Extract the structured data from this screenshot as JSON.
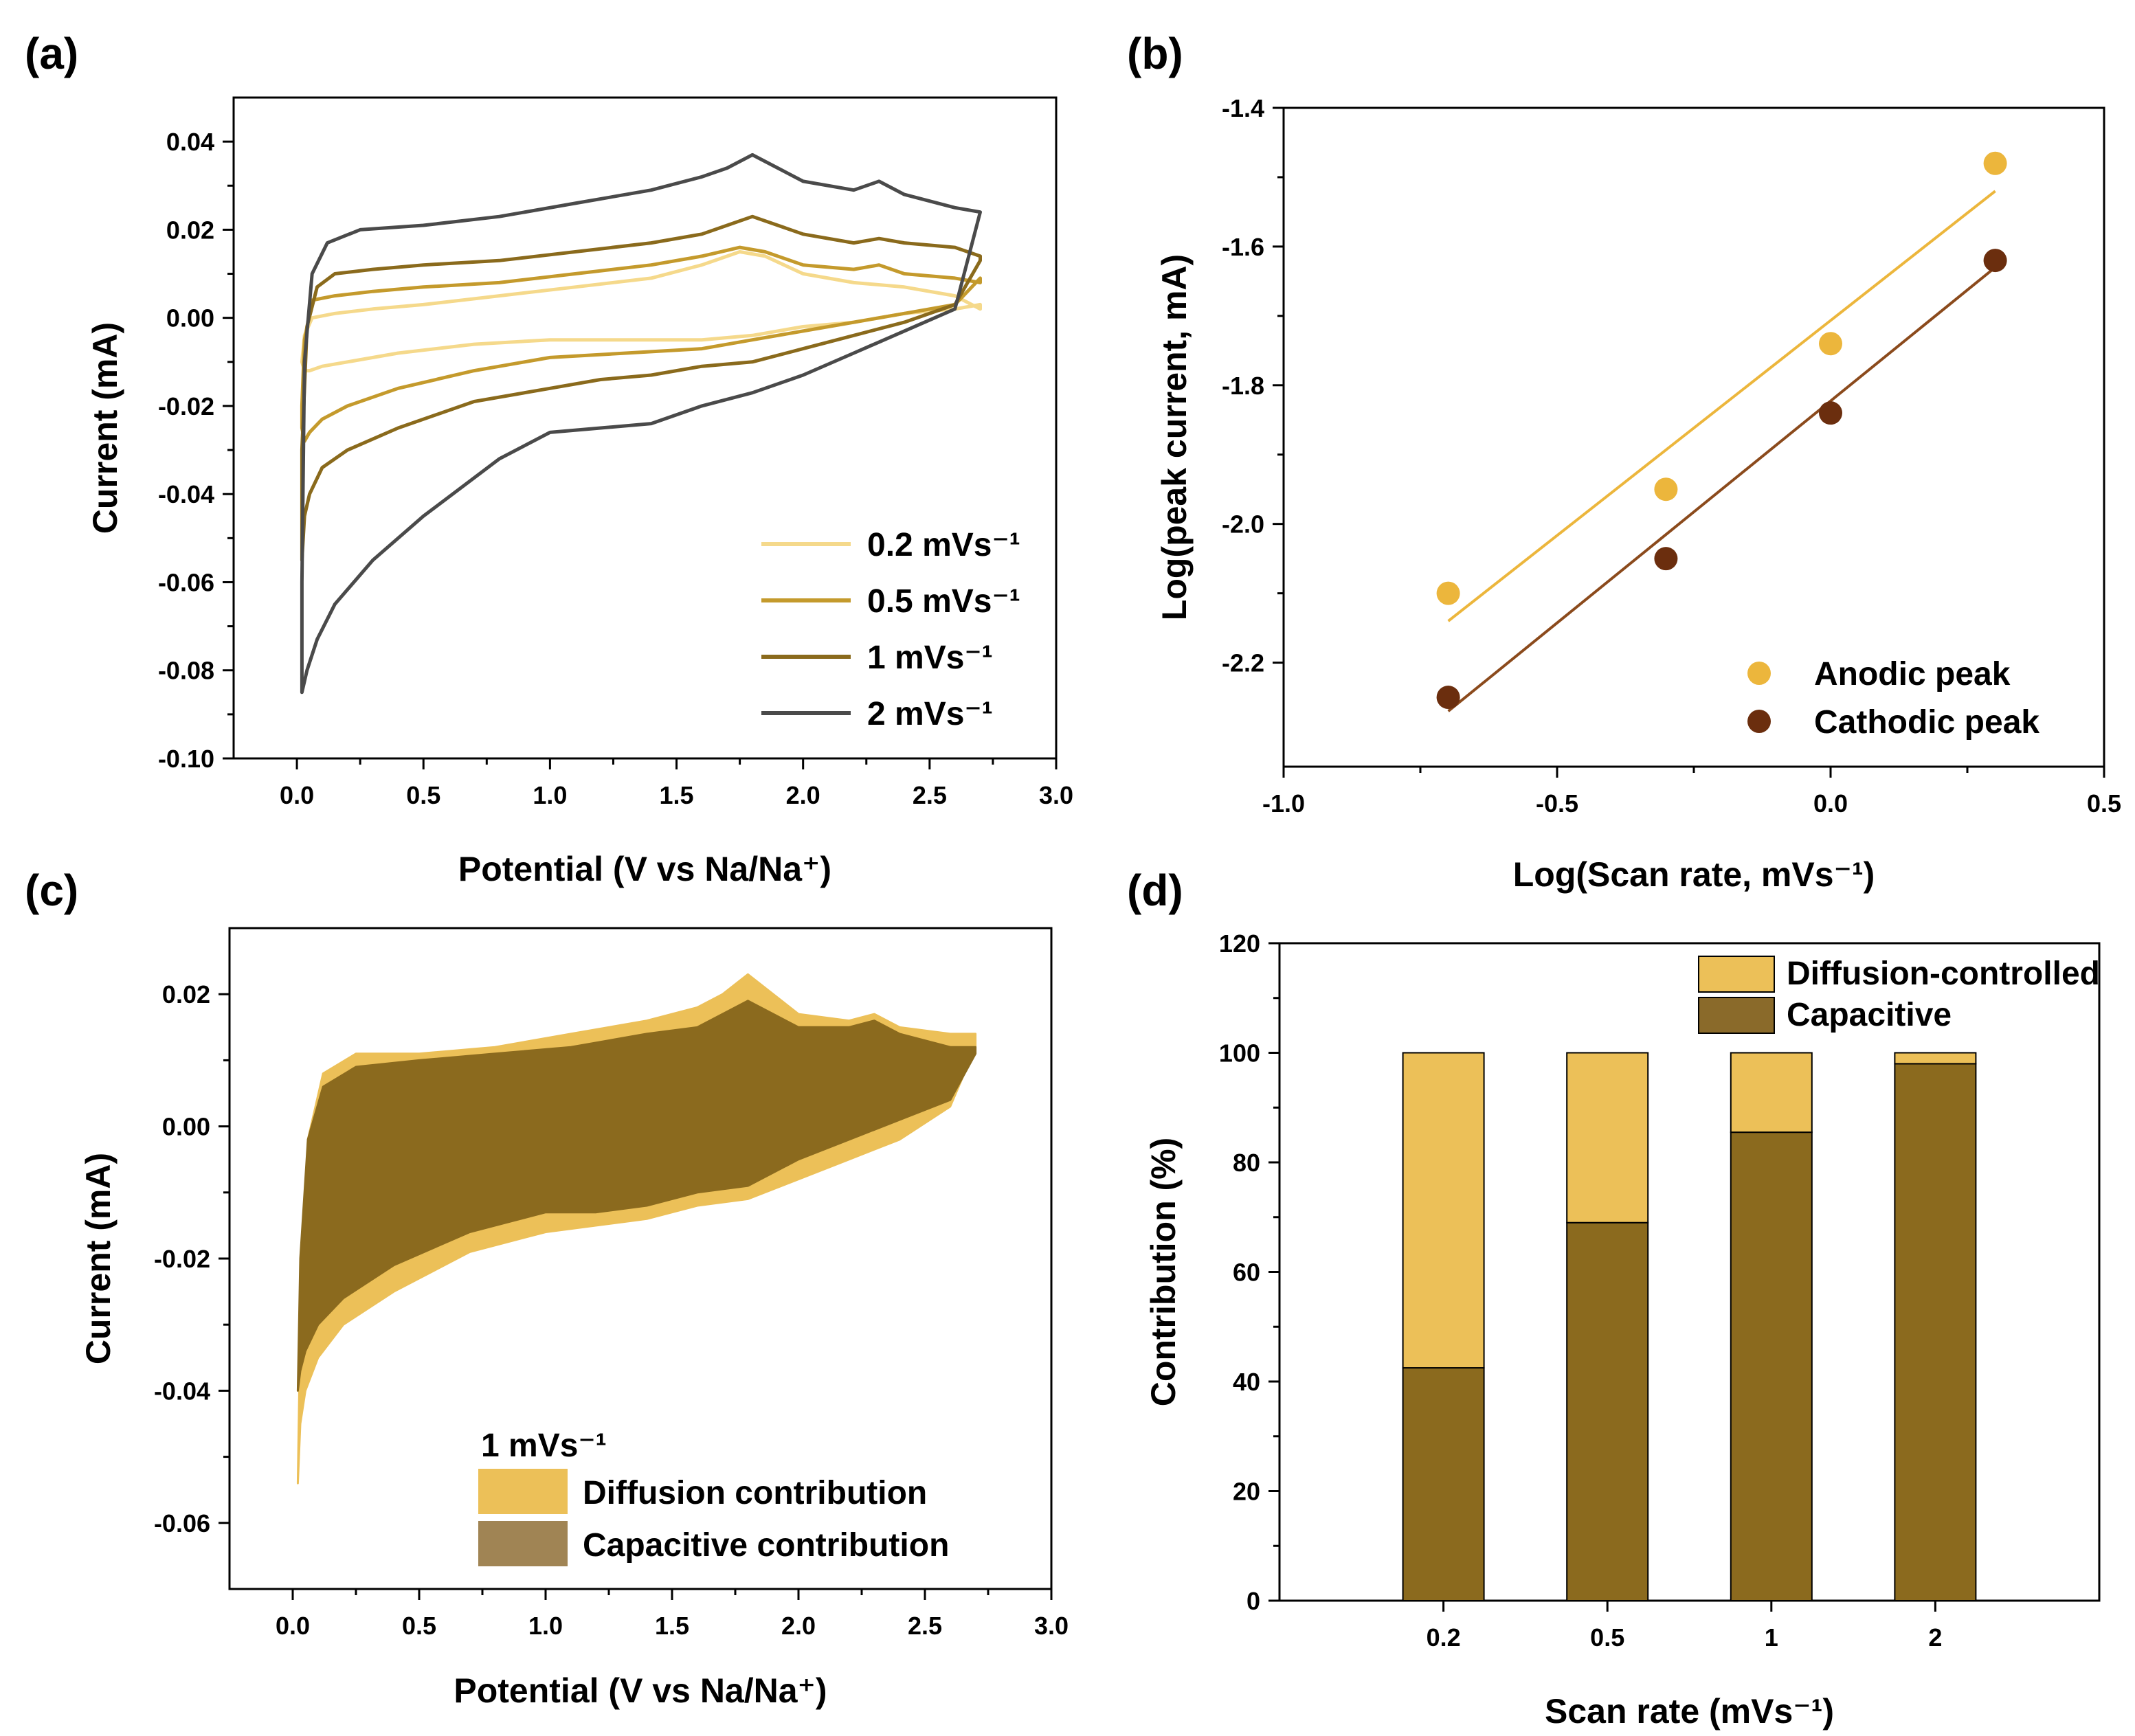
{
  "chart_data": [
    {
      "panel": "(a)",
      "type": "line",
      "title": "",
      "xlabel": "Potential (V vs Na/Na⁺)",
      "ylabel": "Current (mA)",
      "xlim": [
        -0.25,
        3.0
      ],
      "ylim": [
        -0.1,
        0.05
      ],
      "xticks": [
        0.0,
        0.5,
        1.0,
        1.5,
        2.0,
        2.5,
        3.0
      ],
      "xtick_labels": [
        "0.0",
        "0.5",
        "1.0",
        "1.5",
        "2.0",
        "2.5",
        "3.0"
      ],
      "yticks": [
        -0.1,
        -0.08,
        -0.06,
        -0.04,
        -0.02,
        0.0,
        0.02,
        0.04
      ],
      "ytick_labels": [
        "-0.10",
        "-0.08",
        "-0.06",
        "-0.04",
        "-0.02",
        "0.00",
        "0.02",
        "0.04"
      ],
      "legend_position": "bottom-right",
      "series": [
        {
          "name": "0.2 mVs⁻¹",
          "color": "#f5d98b",
          "x": [
            0.02,
            0.03,
            0.06,
            0.15,
            0.3,
            0.5,
            0.8,
            1.1,
            1.4,
            1.6,
            1.75,
            1.85,
            2.0,
            2.2,
            2.4,
            2.6,
            2.7,
            2.7,
            2.6,
            2.4,
            2.2,
            2.0,
            1.8,
            1.6,
            1.3,
            1.0,
            0.7,
            0.4,
            0.2,
            0.1,
            0.05,
            0.03,
            0.02
          ],
          "y": [
            -0.01,
            -0.004,
            0.0,
            0.001,
            0.002,
            0.003,
            0.005,
            0.007,
            0.009,
            0.012,
            0.015,
            0.014,
            0.01,
            0.008,
            0.007,
            0.005,
            0.002,
            0.003,
            0.002,
            0.001,
            -0.001,
            -0.002,
            -0.004,
            -0.005,
            -0.005,
            -0.005,
            -0.006,
            -0.008,
            -0.01,
            -0.011,
            -0.012,
            -0.012,
            -0.01
          ]
        },
        {
          "name": "0.5 mVs⁻¹",
          "color": "#c49a2c",
          "x": [
            0.02,
            0.03,
            0.06,
            0.15,
            0.3,
            0.5,
            0.8,
            1.1,
            1.4,
            1.6,
            1.75,
            1.85,
            2.0,
            2.2,
            2.3,
            2.4,
            2.6,
            2.7,
            2.7,
            2.6,
            2.4,
            2.2,
            2.0,
            1.8,
            1.6,
            1.3,
            1.0,
            0.7,
            0.4,
            0.2,
            0.1,
            0.05,
            0.03,
            0.02
          ],
          "y": [
            -0.02,
            -0.005,
            0.004,
            0.005,
            0.006,
            0.007,
            0.008,
            0.01,
            0.012,
            0.014,
            0.016,
            0.015,
            0.012,
            0.011,
            0.012,
            0.01,
            0.009,
            0.008,
            0.009,
            0.003,
            0.001,
            -0.001,
            -0.003,
            -0.005,
            -0.007,
            -0.008,
            -0.009,
            -0.012,
            -0.016,
            -0.02,
            -0.023,
            -0.026,
            -0.028,
            -0.025
          ]
        },
        {
          "name": "1 mVs⁻¹",
          "color": "#8a6a1c",
          "x": [
            0.02,
            0.02,
            0.04,
            0.08,
            0.15,
            0.3,
            0.5,
            0.8,
            1.1,
            1.4,
            1.6,
            1.7,
            1.8,
            1.9,
            2.0,
            2.2,
            2.3,
            2.4,
            2.6,
            2.7,
            2.7,
            2.6,
            2.4,
            2.2,
            2.0,
            1.8,
            1.6,
            1.4,
            1.2,
            1.0,
            0.7,
            0.4,
            0.2,
            0.1,
            0.05,
            0.03,
            0.02
          ],
          "y": [
            -0.055,
            -0.03,
            -0.002,
            0.007,
            0.01,
            0.011,
            0.012,
            0.013,
            0.015,
            0.017,
            0.019,
            0.021,
            0.023,
            0.021,
            0.019,
            0.017,
            0.018,
            0.017,
            0.016,
            0.014,
            0.013,
            0.003,
            -0.001,
            -0.004,
            -0.007,
            -0.01,
            -0.011,
            -0.013,
            -0.014,
            -0.016,
            -0.019,
            -0.025,
            -0.03,
            -0.034,
            -0.04,
            -0.045,
            -0.055
          ]
        },
        {
          "name": "2 mVs⁻¹",
          "color": "#4a4a4a",
          "x": [
            0.02,
            0.02,
            0.03,
            0.06,
            0.12,
            0.25,
            0.5,
            0.8,
            1.1,
            1.4,
            1.6,
            1.7,
            1.8,
            1.9,
            2.0,
            2.2,
            2.3,
            2.4,
            2.6,
            2.7,
            2.7,
            2.6,
            2.4,
            2.2,
            2.0,
            1.8,
            1.6,
            1.4,
            1.2,
            1.0,
            0.8,
            0.5,
            0.3,
            0.15,
            0.08,
            0.04,
            0.02
          ],
          "y": [
            -0.085,
            -0.06,
            -0.01,
            0.01,
            0.017,
            0.02,
            0.021,
            0.023,
            0.026,
            0.029,
            0.032,
            0.034,
            0.037,
            0.034,
            0.031,
            0.029,
            0.031,
            0.028,
            0.025,
            0.024,
            0.024,
            0.002,
            -0.003,
            -0.008,
            -0.013,
            -0.017,
            -0.02,
            -0.024,
            -0.025,
            -0.026,
            -0.032,
            -0.045,
            -0.055,
            -0.065,
            -0.073,
            -0.08,
            -0.085
          ]
        }
      ]
    },
    {
      "panel": "(b)",
      "type": "scatter",
      "title": "",
      "xlabel": "Log(Scan rate, mVs⁻¹)",
      "ylabel": "Log(peak current, mA)",
      "xlim": [
        -1.0,
        0.5
      ],
      "ylim": [
        -2.35,
        -1.4
      ],
      "xticks": [
        -1.0,
        -0.5,
        0.0,
        0.5
      ],
      "xtick_labels": [
        "-1.0",
        "-0.5",
        "0.0",
        "0.5"
      ],
      "yticks": [
        -2.2,
        -2.0,
        -1.8,
        -1.6,
        -1.4
      ],
      "ytick_labels": [
        "-2.2",
        "-2.0",
        "-1.8",
        "-1.6",
        "-1.4"
      ],
      "legend_position": "bottom-right",
      "series": [
        {
          "name": "Anodic peak",
          "color": "#ecb63c",
          "x": [
            -0.699,
            -0.301,
            0.0,
            0.301
          ],
          "y": [
            -2.1,
            -1.95,
            -1.74,
            -1.48
          ],
          "fit": {
            "x": [
              -0.699,
              0.301
            ],
            "y": [
              -2.14,
              -1.52
            ]
          }
        },
        {
          "name": "Cathodic peak",
          "color": "#6b2e0e",
          "fit_color": "#8b4a1c",
          "x": [
            -0.699,
            -0.301,
            0.0,
            0.301
          ],
          "y": [
            -2.25,
            -2.05,
            -1.84,
            -1.62
          ],
          "fit": {
            "x": [
              -0.699,
              0.301
            ],
            "y": [
              -2.27,
              -1.63
            ]
          }
        }
      ]
    },
    {
      "panel": "(c)",
      "type": "area",
      "title": "",
      "xlabel": "Potential (V vs Na/Na⁺)",
      "ylabel": "Current (mA)",
      "xlim": [
        -0.25,
        3.0
      ],
      "ylim": [
        -0.07,
        0.03
      ],
      "xticks": [
        0.0,
        0.5,
        1.0,
        1.5,
        2.0,
        2.5,
        3.0
      ],
      "xtick_labels": [
        "0.0",
        "0.5",
        "1.0",
        "1.5",
        "2.0",
        "2.5",
        "3.0"
      ],
      "yticks": [
        -0.06,
        -0.04,
        -0.02,
        0.0,
        0.02
      ],
      "ytick_labels": [
        "-0.06",
        "-0.04",
        "-0.02",
        "0.00",
        "0.02"
      ],
      "legend_title": "1 mVs⁻¹",
      "legend_position": "bottom-right",
      "series": [
        {
          "name": "Diffusion contribution",
          "color": "#ecc058",
          "x": [
            0.02,
            0.03,
            0.06,
            0.12,
            0.25,
            0.5,
            0.8,
            1.1,
            1.4,
            1.6,
            1.7,
            1.8,
            1.9,
            2.0,
            2.2,
            2.3,
            2.4,
            2.6,
            2.7,
            2.7,
            2.6,
            2.4,
            2.2,
            2.0,
            1.8,
            1.6,
            1.4,
            1.2,
            1.0,
            0.7,
            0.4,
            0.2,
            0.1,
            0.05,
            0.03,
            0.02
          ],
          "y": [
            -0.054,
            -0.03,
            -0.002,
            0.008,
            0.011,
            0.011,
            0.012,
            0.014,
            0.016,
            0.018,
            0.02,
            0.023,
            0.02,
            0.017,
            0.016,
            0.017,
            0.015,
            0.014,
            0.014,
            0.012,
            0.003,
            -0.002,
            -0.005,
            -0.008,
            -0.011,
            -0.012,
            -0.014,
            -0.015,
            -0.016,
            -0.019,
            -0.025,
            -0.03,
            -0.035,
            -0.04,
            -0.045,
            -0.054
          ]
        },
        {
          "name": "Capacitive contribution",
          "color": "#8b6a1e",
          "legend_color": "#a08454",
          "x": [
            0.02,
            0.03,
            0.06,
            0.12,
            0.25,
            0.5,
            0.8,
            1.1,
            1.4,
            1.6,
            1.7,
            1.8,
            1.9,
            2.0,
            2.2,
            2.3,
            2.4,
            2.6,
            2.7,
            2.7,
            2.6,
            2.4,
            2.2,
            2.0,
            1.8,
            1.6,
            1.4,
            1.2,
            1.0,
            0.7,
            0.4,
            0.2,
            0.1,
            0.05,
            0.03,
            0.02
          ],
          "y": [
            -0.04,
            -0.02,
            -0.002,
            0.006,
            0.009,
            0.01,
            0.011,
            0.012,
            0.014,
            0.015,
            0.017,
            0.019,
            0.017,
            0.015,
            0.015,
            0.016,
            0.014,
            0.012,
            0.012,
            0.011,
            0.004,
            0.001,
            -0.002,
            -0.005,
            -0.009,
            -0.01,
            -0.012,
            -0.013,
            -0.013,
            -0.016,
            -0.021,
            -0.026,
            -0.03,
            -0.034,
            -0.037,
            -0.04
          ]
        }
      ]
    },
    {
      "panel": "(d)",
      "type": "bar",
      "stacked": true,
      "title": "",
      "xlabel": "Scan rate (mVs⁻¹)",
      "ylabel": "Contribution (%)",
      "categories": [
        "0.2",
        "0.5",
        "1",
        "2"
      ],
      "ylim": [
        0,
        120
      ],
      "yticks": [
        0,
        20,
        40,
        60,
        80,
        100,
        120
      ],
      "ytick_labels": [
        "0",
        "20",
        "40",
        "60",
        "80",
        "100",
        "120"
      ],
      "legend_position": "top-right",
      "series": [
        {
          "name": "Capacitive",
          "color": "#8b6a1e",
          "legend_color": "#8a6a2a",
          "values": [
            42.5,
            69.0,
            85.5,
            98.0
          ]
        },
        {
          "name": "Diffusion-controlled",
          "color": "#ecc058",
          "values": [
            57.5,
            31.0,
            14.5,
            2.0
          ]
        }
      ]
    }
  ]
}
